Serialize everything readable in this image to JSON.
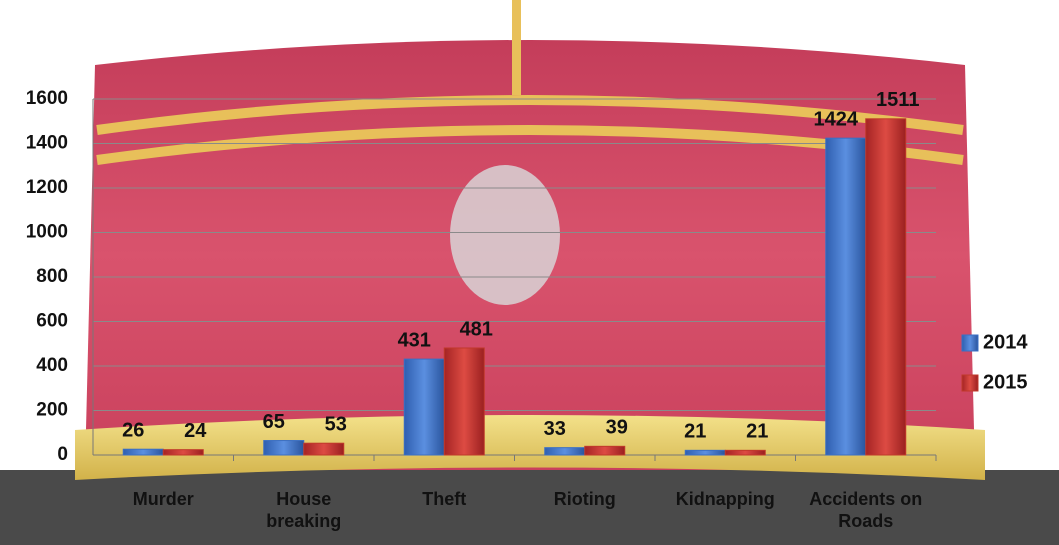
{
  "chart_data": {
    "type": "bar",
    "categories": [
      "Murder",
      "House breaking",
      "Theft",
      "Rioting",
      "Kidnapping",
      "Accidents on Roads"
    ],
    "series": [
      {
        "name": "2014",
        "color": "#3a6fc4",
        "values": [
          26,
          65,
          431,
          33,
          21,
          1424
        ]
      },
      {
        "name": "2015",
        "color": "#c0392b",
        "values": [
          24,
          53,
          481,
          39,
          21,
          1511
        ]
      }
    ],
    "ylim": [
      0,
      1600
    ],
    "yticks": [
      0,
      200,
      400,
      600,
      800,
      1000,
      1200,
      1400,
      1600
    ],
    "grid": true,
    "legend": "right"
  }
}
